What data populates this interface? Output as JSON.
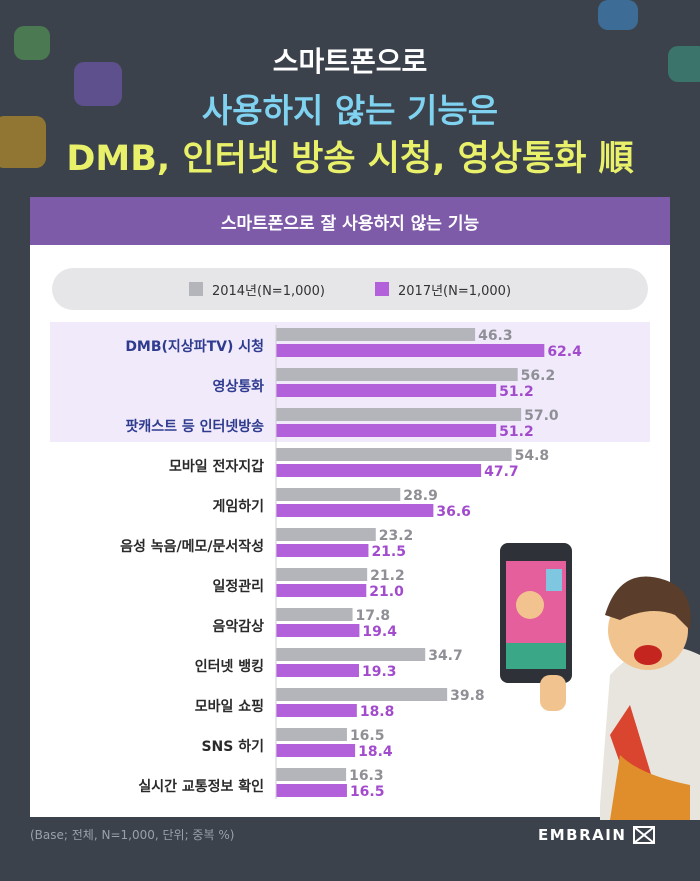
{
  "title": {
    "line1": "스마트폰으로",
    "line2": "사용하지 않는 기능은",
    "line3": "DMB, 인터넷 방송 시청, 영상통화 順"
  },
  "panel_title": "스마트폰으로 잘 사용하지 않는 기능",
  "footnote": "(Base; 전체, N=1,000, 단위; 중복 %)",
  "brand": "EMBRAIN",
  "colors": {
    "series_2014": "#b4b5ba",
    "series_2017": "#b361db",
    "highlight": "#f1eafa"
  },
  "chart_data": {
    "type": "bar",
    "orientation": "horizontal",
    "categories": [
      "DMB(지상파TV) 시청",
      "영상통화",
      "팟캐스트 등 인터넷방송",
      "모바일 전자지갑",
      "게임하기",
      "음성 녹음/메모/문서작성",
      "일정관리",
      "음악감상",
      "인터넷 뱅킹",
      "모바일 쇼핑",
      "SNS 하기",
      "실시간 교통정보 확인"
    ],
    "highlighted_categories": [
      "DMB(지상파TV) 시청",
      "영상통화",
      "팟캐스트 등 인터넷방송"
    ],
    "series": [
      {
        "name": "2014년(N=1,000)",
        "values": [
          46.3,
          56.2,
          57.0,
          54.8,
          28.9,
          23.2,
          21.2,
          17.8,
          34.7,
          39.8,
          16.5,
          16.3
        ]
      },
      {
        "name": "2017년(N=1,000)",
        "values": [
          62.4,
          51.2,
          51.2,
          47.7,
          36.6,
          21.5,
          21.0,
          19.4,
          19.3,
          18.8,
          18.4,
          16.5
        ]
      }
    ],
    "value_labels": [
      [
        "46.3",
        "56.2",
        "57.0",
        "54.8",
        "28.9",
        "23.2",
        "21.2",
        "17.8",
        "34.7",
        "39.8",
        "16.5",
        "16.3"
      ],
      [
        "62.4",
        "51.2",
        "51.2",
        "47.7",
        "36.6",
        "21.5",
        "21.0",
        "19.4",
        "19.3",
        "18.8",
        "18.4",
        "16.5"
      ]
    ],
    "legend_position": "top"
  }
}
